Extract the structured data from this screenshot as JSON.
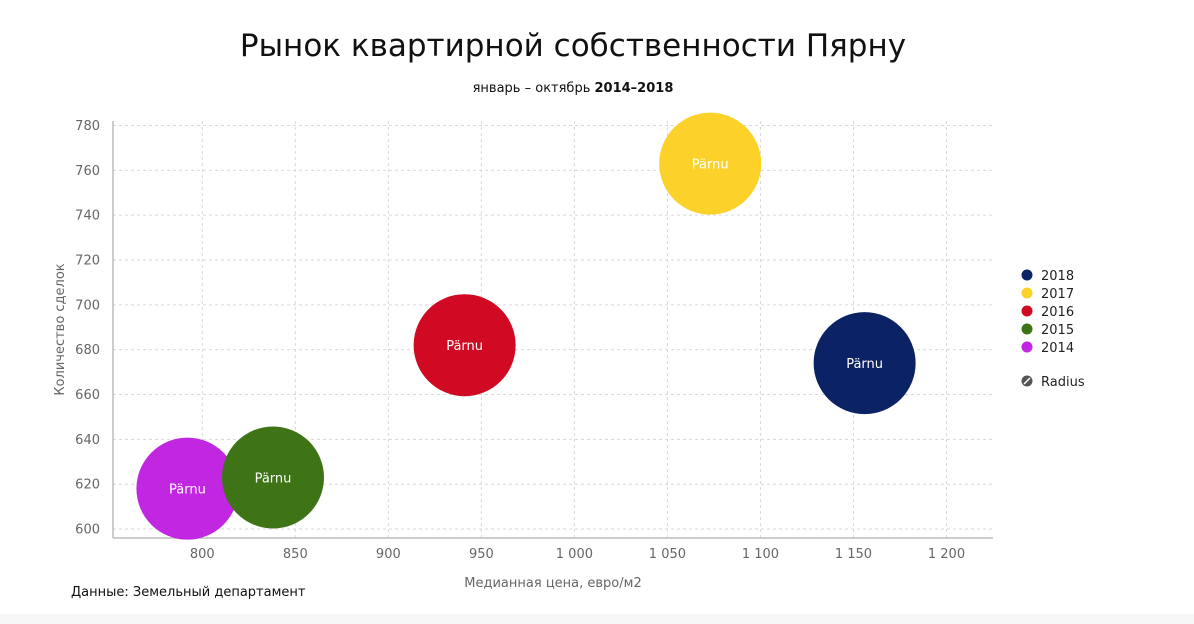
{
  "title": "Рынок квартирной собственности Пярну",
  "subtitle_prefix": "январь – октябрь ",
  "subtitle_years": "2014–2018",
  "source": "Данные: Земельный департамент",
  "legend_extra": "Radius",
  "chart_data": {
    "type": "scatter",
    "variant": "bubble",
    "xlabel": "Медианная цена, евро/м2",
    "ylabel": "Количество сделок",
    "xlim": [
      752,
      1225
    ],
    "ylim": [
      596,
      782
    ],
    "x_ticks": [
      800,
      850,
      900,
      950,
      1000,
      1050,
      1100,
      1150,
      1200
    ],
    "x_tick_labels": [
      "800",
      "850",
      "900",
      "950",
      "1 000",
      "1 050",
      "1 100",
      "1 150",
      "1 200"
    ],
    "y_ticks": [
      600,
      620,
      640,
      660,
      680,
      700,
      720,
      740,
      760,
      780
    ],
    "grid": true,
    "legend_position": "right",
    "series": [
      {
        "name": "2018",
        "color": "#0b2265",
        "points": [
          {
            "x": 1156,
            "y": 674,
            "label": "Pärnu"
          }
        ]
      },
      {
        "name": "2017",
        "color": "#fcd12a",
        "points": [
          {
            "x": 1073,
            "y": 763,
            "label": "Pärnu"
          }
        ]
      },
      {
        "name": "2016",
        "color": "#cf0a22",
        "points": [
          {
            "x": 941,
            "y": 682,
            "label": "Pärnu"
          }
        ]
      },
      {
        "name": "2015",
        "color": "#3e7416",
        "points": [
          {
            "x": 838,
            "y": 623,
            "label": "Pärnu"
          }
        ]
      },
      {
        "name": "2014",
        "color": "#c126e0",
        "points": [
          {
            "x": 792,
            "y": 618,
            "label": "Pärnu"
          }
        ]
      }
    ]
  }
}
